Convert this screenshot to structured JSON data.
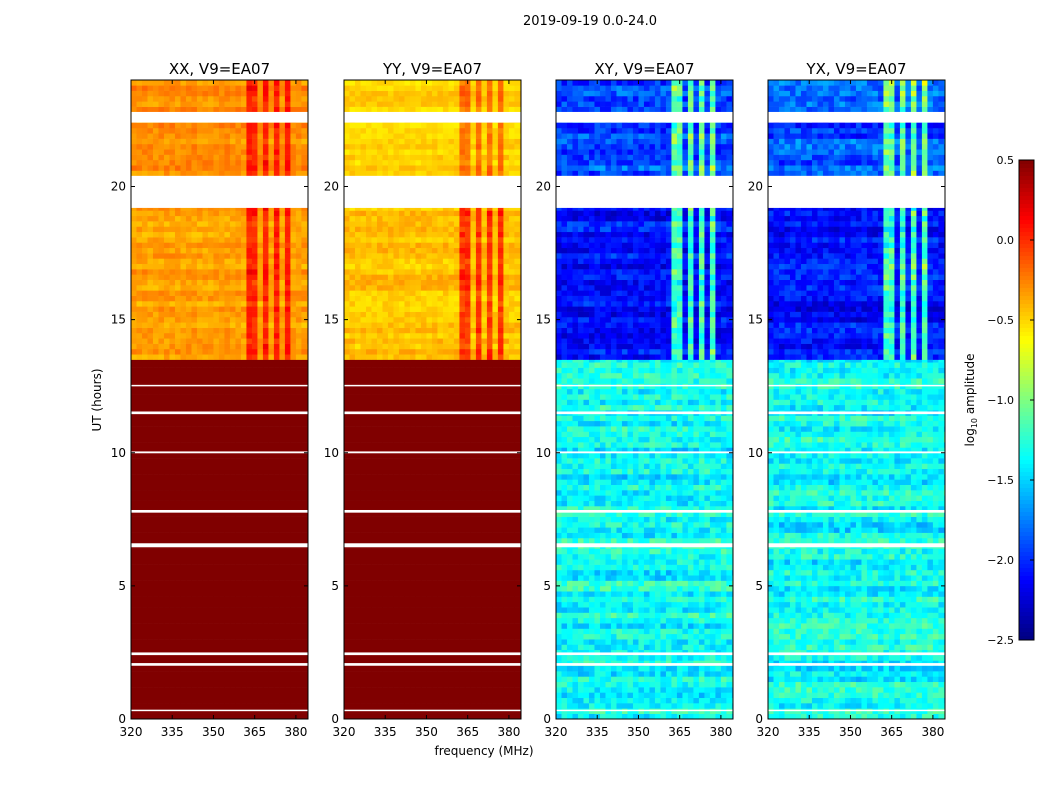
{
  "chart_data": {
    "type": "heatmap",
    "title": "2019-09-19 0.0-24.0",
    "xlabel": "frequency (MHz)",
    "ylabel": "UT (hours)",
    "xlim": [
      320,
      384.4
    ],
    "ylim": [
      0,
      24
    ],
    "xticks": [
      320,
      335,
      350,
      365,
      380
    ],
    "yticks": [
      0,
      5,
      10,
      15,
      20
    ],
    "colorbar": {
      "label": "log10 amplitude",
      "label_main": "log",
      "label_sub": "10",
      "label_tail": " amplitude",
      "range": [
        -2.5,
        0.5
      ],
      "ticks": [
        "0.5",
        "0.0",
        "−0.5",
        "−1.0",
        "−1.5",
        "−2.0",
        "−2.5"
      ],
      "tick_values": [
        0.5,
        0,
        -0.5,
        -1,
        -1.5,
        -2,
        -2.5
      ],
      "colormap": "jet"
    },
    "flagged_ut_ranges": [
      [
        0.3,
        0.35
      ],
      [
        2.0,
        2.1
      ],
      [
        2.4,
        2.5
      ],
      [
        6.45,
        6.6
      ],
      [
        7.75,
        7.85
      ],
      [
        9.98,
        10.05
      ],
      [
        11.45,
        11.55
      ],
      [
        12.5,
        12.55
      ],
      [
        19.2,
        20.4
      ],
      [
        22.4,
        22.8
      ]
    ],
    "hot_channels_mhz": [
      [
        362,
        366
      ],
      [
        368,
        370
      ],
      [
        372,
        374
      ],
      [
        376,
        378
      ]
    ],
    "panels": [
      {
        "title": "XX, V9=EA07",
        "segments": [
          {
            "ut": [
              0,
              13.5
            ],
            "level": 0.5,
            "noise": 0
          },
          {
            "ut": [
              13.5,
              19.2
            ],
            "level": -0.35,
            "noise": 0.15,
            "hot": 0.45
          },
          {
            "ut": [
              20.4,
              24
            ],
            "level": -0.3,
            "noise": 0.15,
            "hot": 0.4
          }
        ]
      },
      {
        "title": "YY, V9=EA07",
        "segments": [
          {
            "ut": [
              0,
              13.5
            ],
            "level": 0.5,
            "noise": 0
          },
          {
            "ut": [
              13.5,
              19.2
            ],
            "level": -0.45,
            "noise": 0.15,
            "hot": 0.5
          },
          {
            "ut": [
              20.4,
              24
            ],
            "level": -0.5,
            "noise": 0.12,
            "hot": 0.35
          }
        ]
      },
      {
        "title": "XY, V9=EA07",
        "segments": [
          {
            "ut": [
              0,
              13.5
            ],
            "level": -1.35,
            "noise": 0.35
          },
          {
            "ut": [
              13.5,
              19.2
            ],
            "level": -2.1,
            "noise": 0.3,
            "hot": 1.1
          },
          {
            "ut": [
              20.4,
              24
            ],
            "level": -1.9,
            "noise": 0.35,
            "hot": 1.0
          }
        ]
      },
      {
        "title": "YX, V9=EA07",
        "segments": [
          {
            "ut": [
              0,
              13.5
            ],
            "level": -1.35,
            "noise": 0.35
          },
          {
            "ut": [
              13.5,
              19.2
            ],
            "level": -2.1,
            "noise": 0.3,
            "hot": 1.1
          },
          {
            "ut": [
              20.4,
              24
            ],
            "level": -1.9,
            "noise": 0.35,
            "hot": 1.0
          }
        ]
      }
    ]
  }
}
